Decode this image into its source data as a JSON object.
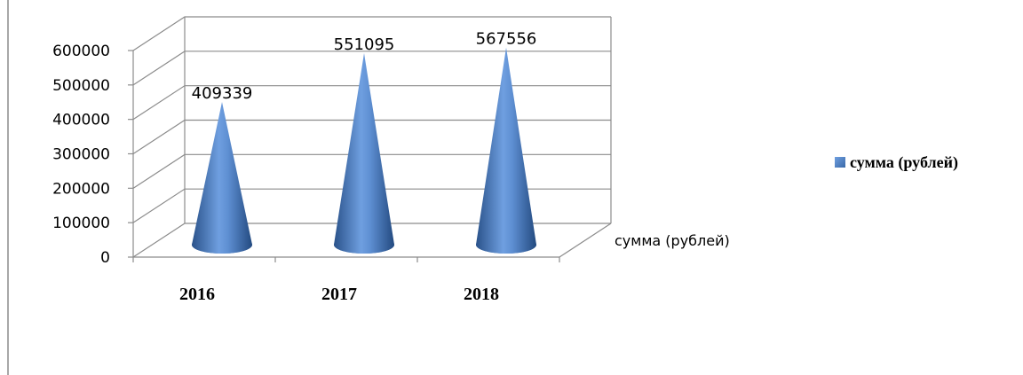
{
  "chart_data": {
    "type": "bar",
    "categories": [
      "2016",
      "2017",
      "2018"
    ],
    "series": [
      {
        "name": "сумма (рублей)",
        "values": [
          409339,
          551095,
          567556
        ]
      }
    ],
    "data_labels": [
      "409339",
      "551095",
      "567556"
    ],
    "y_ticks": [
      "0",
      "100000",
      "200000",
      "300000",
      "400000",
      "500000",
      "600000"
    ],
    "ylim": [
      0,
      600000
    ],
    "depth_axis_label": "сумма (рублей)",
    "legend": {
      "position": "right",
      "entries": [
        "сумма (рублей)"
      ]
    },
    "grid": true,
    "shape": "cone",
    "colors": {
      "series": "#4a7ebb",
      "series_dark": "#274f86",
      "series_light": "#8db4e8"
    }
  }
}
